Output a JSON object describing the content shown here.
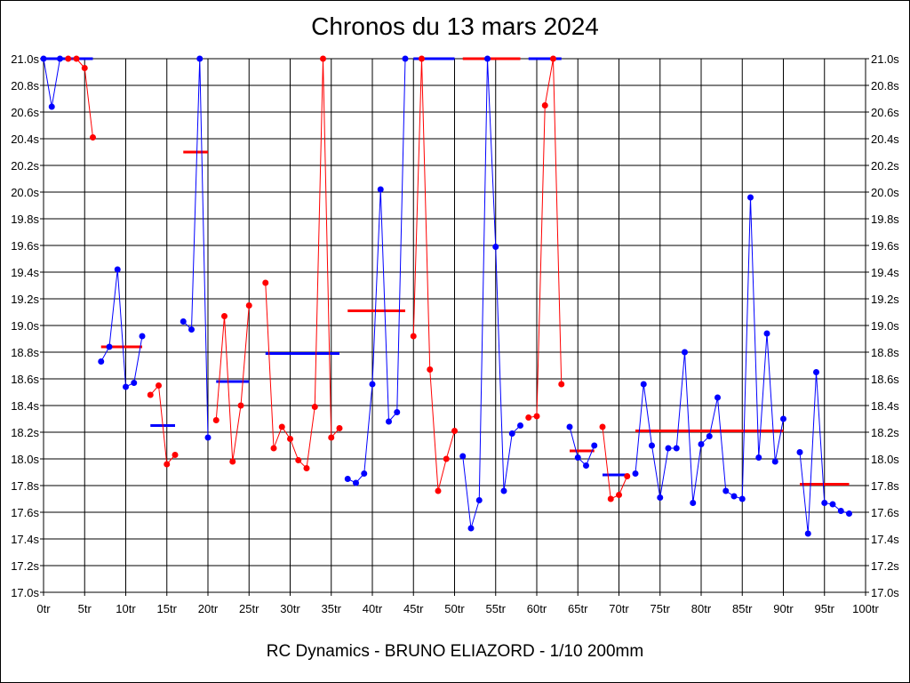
{
  "chart_data": {
    "type": "line",
    "title": "Chronos du 13 mars 2024",
    "subtitle": "RC Dynamics - BRUNO ELIAZORD - 1/10 200mm",
    "x_unit": "tr",
    "y_unit": "s",
    "xlim": [
      0,
      100
    ],
    "ylim": [
      17.0,
      21.0
    ],
    "x_ticks": [
      0,
      5,
      10,
      15,
      20,
      25,
      30,
      35,
      40,
      45,
      50,
      55,
      60,
      65,
      70,
      75,
      80,
      85,
      90,
      95,
      100
    ],
    "x_tick_labels": [
      "0tr",
      "5tr",
      "10tr",
      "15tr",
      "20tr",
      "25tr",
      "30tr",
      "35tr",
      "40tr",
      "45tr",
      "50tr",
      "55tr",
      "60tr",
      "65tr",
      "70tr",
      "75tr",
      "80tr",
      "85tr",
      "90tr",
      "95tr",
      "100tr"
    ],
    "y_ticks": [
      17.0,
      17.2,
      17.4,
      17.6,
      17.8,
      18.0,
      18.2,
      18.4,
      18.6,
      18.8,
      19.0,
      19.2,
      19.4,
      19.6,
      19.8,
      20.0,
      20.2,
      20.4,
      20.6,
      20.8,
      21.0
    ],
    "y_tick_labels": [
      "17.0s",
      "17.2s",
      "17.4s",
      "17.6s",
      "17.8s",
      "18.0s",
      "18.2s",
      "18.4s",
      "18.6s",
      "18.8s",
      "19.0s",
      "19.2s",
      "19.4s",
      "19.6s",
      "19.8s",
      "20.0s",
      "20.2s",
      "20.4s",
      "20.6s",
      "20.8s",
      "21.0s"
    ],
    "grid": true,
    "colors": {
      "blue": "#0000ff",
      "red": "#ff0000"
    },
    "series": [
      {
        "color": "blue",
        "x": [
          0,
          1,
          2
        ],
        "y": [
          21.0,
          20.64,
          21.0
        ]
      },
      {
        "color": "red",
        "x": [
          3,
          4,
          5,
          6
        ],
        "y": [
          21.0,
          21.0,
          20.93,
          20.41
        ]
      },
      {
        "color": "blue",
        "x": [
          7,
          8,
          9,
          10,
          11,
          12
        ],
        "y": [
          18.73,
          18.84,
          19.42,
          18.54,
          18.57,
          18.92
        ]
      },
      {
        "color": "red",
        "x": [
          13,
          14,
          15,
          16
        ],
        "y": [
          18.48,
          18.55,
          17.96,
          18.03
        ]
      },
      {
        "color": "blue",
        "x": [
          17,
          18,
          19,
          20
        ],
        "y": [
          19.03,
          18.97,
          21.0,
          18.16
        ]
      },
      {
        "color": "red",
        "x": [
          21,
          22,
          23,
          24,
          25
        ],
        "y": [
          18.29,
          19.07,
          17.98,
          18.4,
          19.15
        ]
      },
      {
        "color": "red",
        "x": [
          27,
          28,
          29,
          30,
          31,
          32,
          33,
          34,
          35,
          36
        ],
        "y": [
          19.32,
          18.08,
          18.24,
          18.15,
          17.99,
          17.93,
          18.39,
          21.0,
          18.16,
          18.23
        ]
      },
      {
        "color": "blue",
        "x": [
          37,
          38,
          39,
          40,
          41,
          42,
          43,
          44
        ],
        "y": [
          17.85,
          17.82,
          17.89,
          18.56,
          20.02,
          18.28,
          18.35,
          21.0
        ]
      },
      {
        "color": "red",
        "x": [
          45,
          46,
          47,
          48,
          49,
          50
        ],
        "y": [
          18.92,
          21.0,
          18.67,
          17.76,
          18.0,
          18.21
        ]
      },
      {
        "color": "blue",
        "x": [
          51,
          52,
          53,
          54,
          55,
          56,
          57,
          58
        ],
        "y": [
          18.02,
          17.48,
          17.69,
          21.0,
          19.59,
          17.76,
          18.19,
          18.25
        ]
      },
      {
        "color": "red",
        "x": [
          59,
          60,
          61,
          62,
          63
        ],
        "y": [
          18.31,
          18.32,
          20.65,
          21.0,
          18.56
        ]
      },
      {
        "color": "blue",
        "x": [
          64,
          65,
          66,
          67
        ],
        "y": [
          18.24,
          18.01,
          17.95,
          18.1
        ]
      },
      {
        "color": "red",
        "x": [
          68,
          69,
          70,
          71
        ],
        "y": [
          18.24,
          17.7,
          17.73,
          17.87
        ]
      },
      {
        "color": "blue",
        "x": [
          72,
          73,
          74,
          75,
          76,
          77,
          78,
          79,
          80,
          81,
          82,
          83,
          84,
          85,
          86,
          87,
          88,
          89,
          90
        ],
        "y": [
          17.89,
          18.56,
          18.1,
          17.71,
          18.08,
          18.08,
          18.8,
          17.67,
          18.11,
          18.17,
          18.46,
          17.76,
          17.72,
          17.7,
          19.96,
          18.01,
          18.94,
          17.98,
          18.3
        ]
      },
      {
        "color": "blue",
        "x": [
          92,
          93,
          94,
          95,
          96,
          97,
          98
        ],
        "y": [
          18.05,
          17.44,
          18.65,
          17.67,
          17.66,
          17.61,
          17.59
        ]
      }
    ],
    "averages": [
      {
        "color": "blue",
        "x": [
          0,
          6
        ],
        "y": 21.0
      },
      {
        "color": "red",
        "x": [
          7,
          12
        ],
        "y": 18.84
      },
      {
        "color": "blue",
        "x": [
          13,
          16
        ],
        "y": 18.25
      },
      {
        "color": "red",
        "x": [
          17,
          20
        ],
        "y": 20.3
      },
      {
        "color": "blue",
        "x": [
          21,
          25
        ],
        "y": 18.58
      },
      {
        "color": "blue",
        "x": [
          27,
          36
        ],
        "y": 18.79
      },
      {
        "color": "red",
        "x": [
          37,
          44
        ],
        "y": 19.11
      },
      {
        "color": "blue",
        "x": [
          45,
          50
        ],
        "y": 21.0
      },
      {
        "color": "red",
        "x": [
          51,
          58
        ],
        "y": 21.0
      },
      {
        "color": "blue",
        "x": [
          59,
          63
        ],
        "y": 21.0
      },
      {
        "color": "red",
        "x": [
          64,
          67
        ],
        "y": 18.06
      },
      {
        "color": "blue",
        "x": [
          68,
          71
        ],
        "y": 17.88
      },
      {
        "color": "red",
        "x": [
          72,
          90
        ],
        "y": 18.21
      },
      {
        "color": "red",
        "x": [
          92,
          98
        ],
        "y": 17.81
      }
    ]
  }
}
